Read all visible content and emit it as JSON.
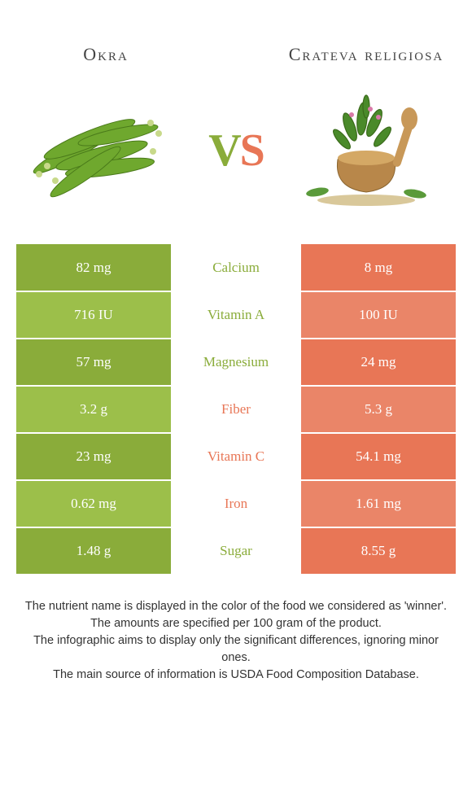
{
  "colors": {
    "left": "#8aac3a",
    "leftAlt": "#9cbf4a",
    "right": "#e87656",
    "rightAlt": "#ea8568",
    "vsLeft": "#8aac3a",
    "vsRight": "#e87656"
  },
  "leftFood": {
    "title": "Okra"
  },
  "rightFood": {
    "title": "Crateva religiosa"
  },
  "vs": {
    "v": "V",
    "s": "S"
  },
  "rows": [
    {
      "label": "Calcium",
      "left": "82 mg",
      "right": "8 mg",
      "winner": "left"
    },
    {
      "label": "Vitamin A",
      "left": "716 IU",
      "right": "100 IU",
      "winner": "left"
    },
    {
      "label": "Magnesium",
      "left": "57 mg",
      "right": "24 mg",
      "winner": "left"
    },
    {
      "label": "Fiber",
      "left": "3.2 g",
      "right": "5.3 g",
      "winner": "right"
    },
    {
      "label": "Vitamin C",
      "left": "23 mg",
      "right": "54.1 mg",
      "winner": "right"
    },
    {
      "label": "Iron",
      "left": "0.62 mg",
      "right": "1.61 mg",
      "winner": "right"
    },
    {
      "label": "Sugar",
      "left": "1.48 g",
      "right": "8.55 g",
      "winner": "left"
    }
  ],
  "footer": {
    "l1": "The nutrient name is displayed in the color of the food we considered as 'winner'.",
    "l2": "The amounts are specified per 100 gram of the product.",
    "l3": "The infographic aims to display only the significant differences, ignoring minor ones.",
    "l4": "The main source of information is USDA Food Composition Database."
  }
}
